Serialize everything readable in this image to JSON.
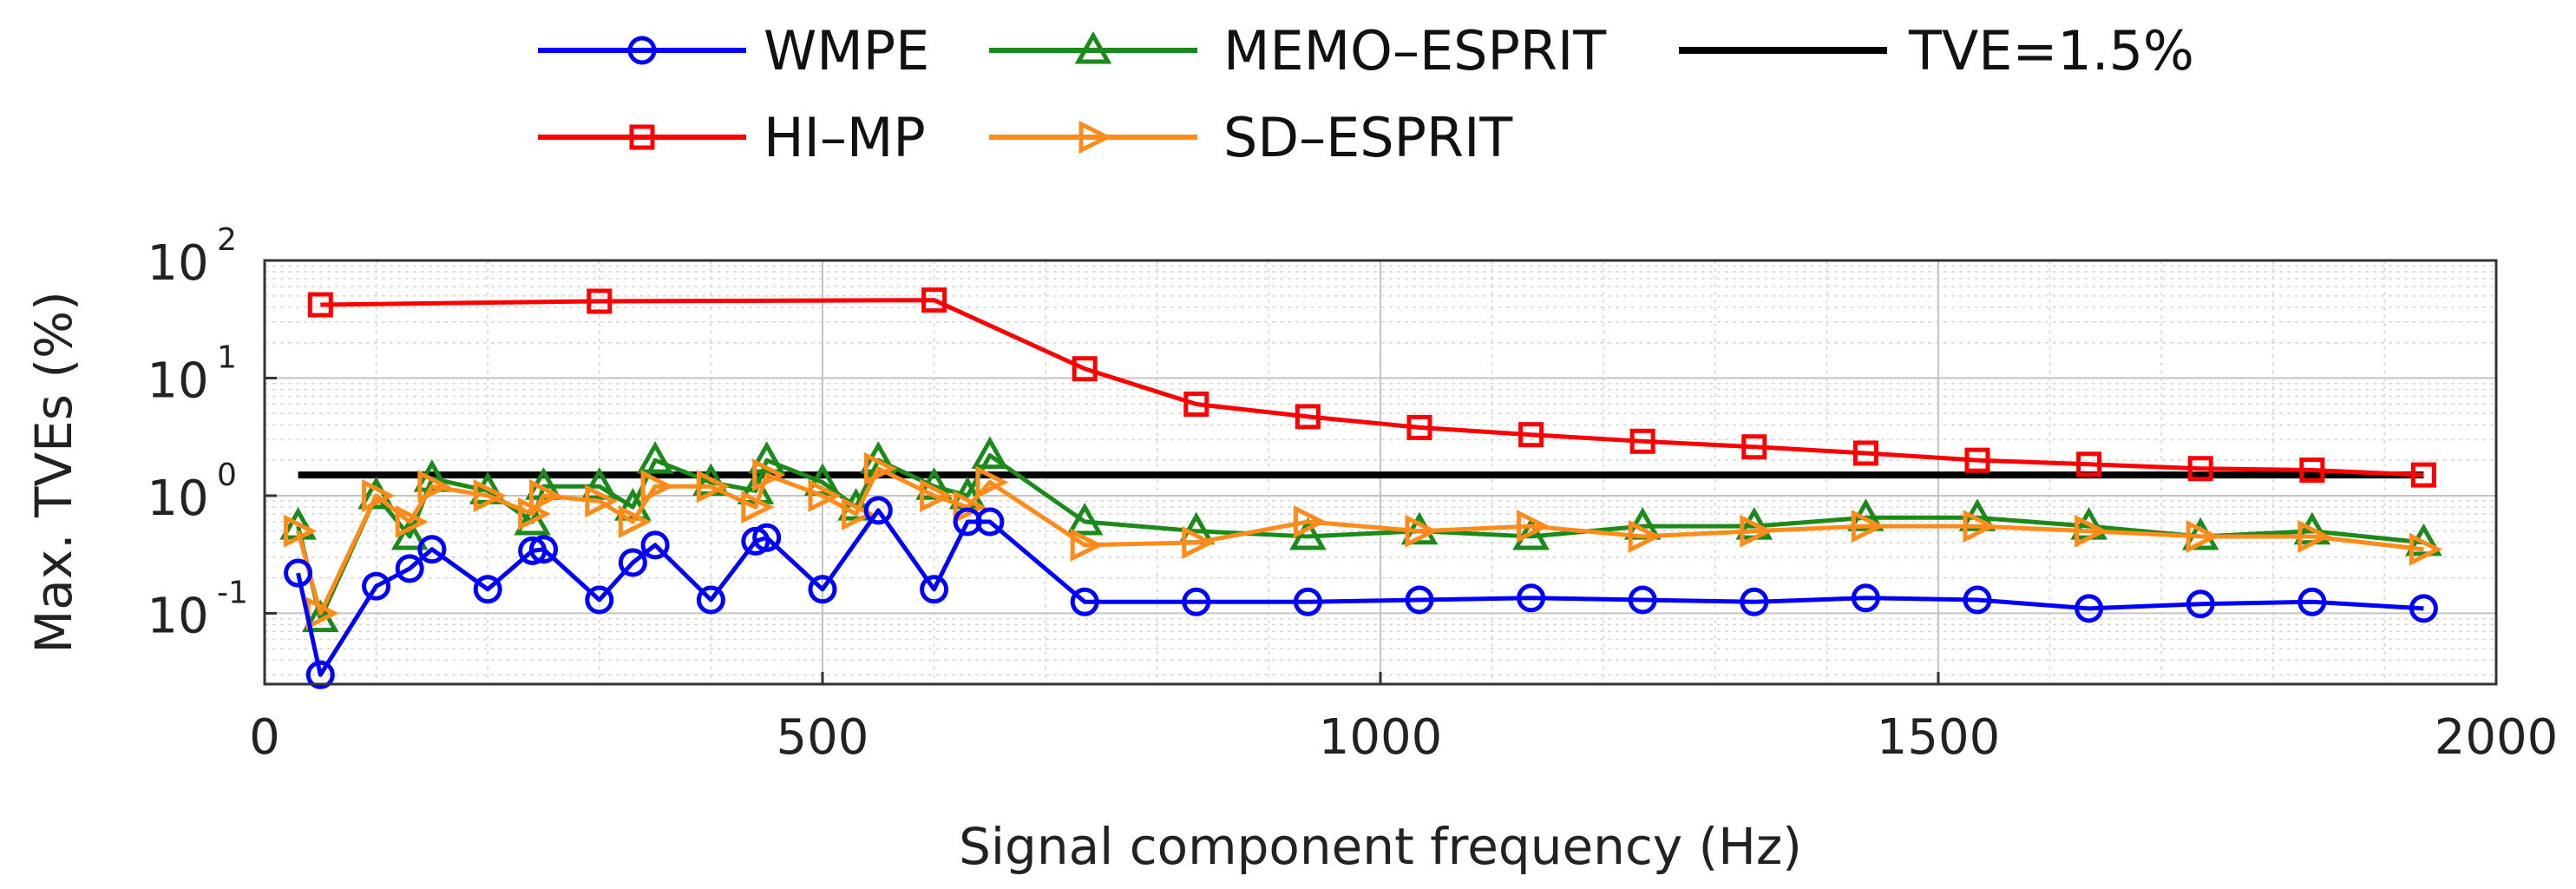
{
  "chart_data": {
    "type": "line",
    "title": "",
    "xlabel": "Signal component frequency (Hz)",
    "ylabel": "Max. TVEs (%)",
    "xlim": [
      0,
      2000
    ],
    "ylim": [
      0.025,
      100
    ],
    "yscale": "log",
    "grid": true,
    "minor_grid": true,
    "legend_position": "top",
    "xticks": [
      0,
      500,
      1000,
      1500,
      2000
    ],
    "xtick_labels": [
      "0",
      "500",
      "1000",
      "1500",
      "2000"
    ],
    "yticks": [
      {
        "value": 0.1,
        "base": "10",
        "exp": "-1"
      },
      {
        "value": 1,
        "base": "10",
        "exp": "0"
      },
      {
        "value": 10,
        "base": "10",
        "exp": "1"
      },
      {
        "value": 100,
        "base": "10",
        "exp": "2"
      }
    ],
    "series": [
      {
        "name": "WMPE",
        "color": "#0000ff",
        "marker": "circle",
        "x": [
          30,
          50,
          100,
          130,
          150,
          200,
          240,
          250,
          300,
          330,
          350,
          400,
          440,
          450,
          500,
          550,
          600,
          630,
          650,
          735,
          835,
          935,
          1035,
          1135,
          1235,
          1335,
          1435,
          1535,
          1635,
          1735,
          1835,
          1935
        ],
        "y": [
          0.22,
          0.03,
          0.17,
          0.24,
          0.35,
          0.16,
          0.34,
          0.35,
          0.13,
          0.27,
          0.38,
          0.13,
          0.41,
          0.44,
          0.16,
          0.75,
          0.16,
          0.6,
          0.6,
          0.125,
          0.125,
          0.125,
          0.13,
          0.135,
          0.13,
          0.125,
          0.135,
          0.13,
          0.11,
          0.12,
          0.125,
          0.11
        ]
      },
      {
        "name": "HI–MP",
        "color": "#ff0000",
        "marker": "square",
        "x": [
          50,
          300,
          600,
          735,
          835,
          935,
          1035,
          1135,
          1235,
          1335,
          1435,
          1535,
          1635,
          1735,
          1835,
          1935
        ],
        "y": [
          42,
          45,
          46,
          12,
          6,
          4.7,
          3.8,
          3.3,
          2.9,
          2.6,
          2.3,
          2.0,
          1.85,
          1.7,
          1.65,
          1.5
        ]
      },
      {
        "name": "MEMO–ESPRIT",
        "color": "#1a8a1a",
        "marker": "triangle-up",
        "x": [
          30,
          50,
          100,
          130,
          150,
          200,
          240,
          250,
          300,
          330,
          350,
          400,
          440,
          450,
          500,
          530,
          550,
          600,
          630,
          650,
          735,
          835,
          935,
          1035,
          1135,
          1235,
          1335,
          1435,
          1535,
          1635,
          1735,
          1835,
          1935
        ],
        "y": [
          0.55,
          0.09,
          1.0,
          0.45,
          1.4,
          1.1,
          0.6,
          1.2,
          1.2,
          0.8,
          2.0,
          1.3,
          1.1,
          2.0,
          1.3,
          0.8,
          2.0,
          1.2,
          1.0,
          2.2,
          0.6,
          0.5,
          0.45,
          0.5,
          0.45,
          0.55,
          0.55,
          0.65,
          0.65,
          0.55,
          0.45,
          0.5,
          0.4
        ]
      },
      {
        "name": "SD–ESPRIT",
        "color": "#ff8c1a",
        "marker": "triangle-right",
        "x": [
          30,
          50,
          100,
          130,
          150,
          200,
          240,
          250,
          300,
          330,
          350,
          400,
          440,
          450,
          500,
          530,
          550,
          600,
          630,
          650,
          735,
          835,
          935,
          1035,
          1135,
          1235,
          1335,
          1435,
          1535,
          1635,
          1735,
          1835,
          1935
        ],
        "y": [
          0.5,
          0.1,
          1.0,
          0.6,
          1.2,
          1.0,
          0.7,
          1.0,
          0.9,
          0.6,
          1.2,
          1.2,
          0.8,
          1.5,
          1.0,
          0.7,
          1.7,
          1.0,
          0.8,
          1.3,
          0.38,
          0.4,
          0.6,
          0.5,
          0.55,
          0.45,
          0.5,
          0.55,
          0.55,
          0.5,
          0.45,
          0.45,
          0.35
        ]
      },
      {
        "name": "TVE=1.5%",
        "color": "#000000",
        "marker": "none",
        "x": [
          30,
          1935
        ],
        "y": [
          1.5,
          1.5
        ]
      }
    ]
  },
  "legend": {
    "items": [
      {
        "label": "WMPE",
        "color": "#0000ff",
        "marker": "circle"
      },
      {
        "label": "MEMO–ESPRIT",
        "color": "#1a8a1a",
        "marker": "triangle-up"
      },
      {
        "label": "TVE=1.5%",
        "color": "#000000",
        "marker": "none"
      },
      {
        "label": "HI–MP",
        "color": "#ff0000",
        "marker": "square"
      },
      {
        "label": "SD–ESPRIT",
        "color": "#ff8c1a",
        "marker": "triangle-right"
      }
    ]
  }
}
